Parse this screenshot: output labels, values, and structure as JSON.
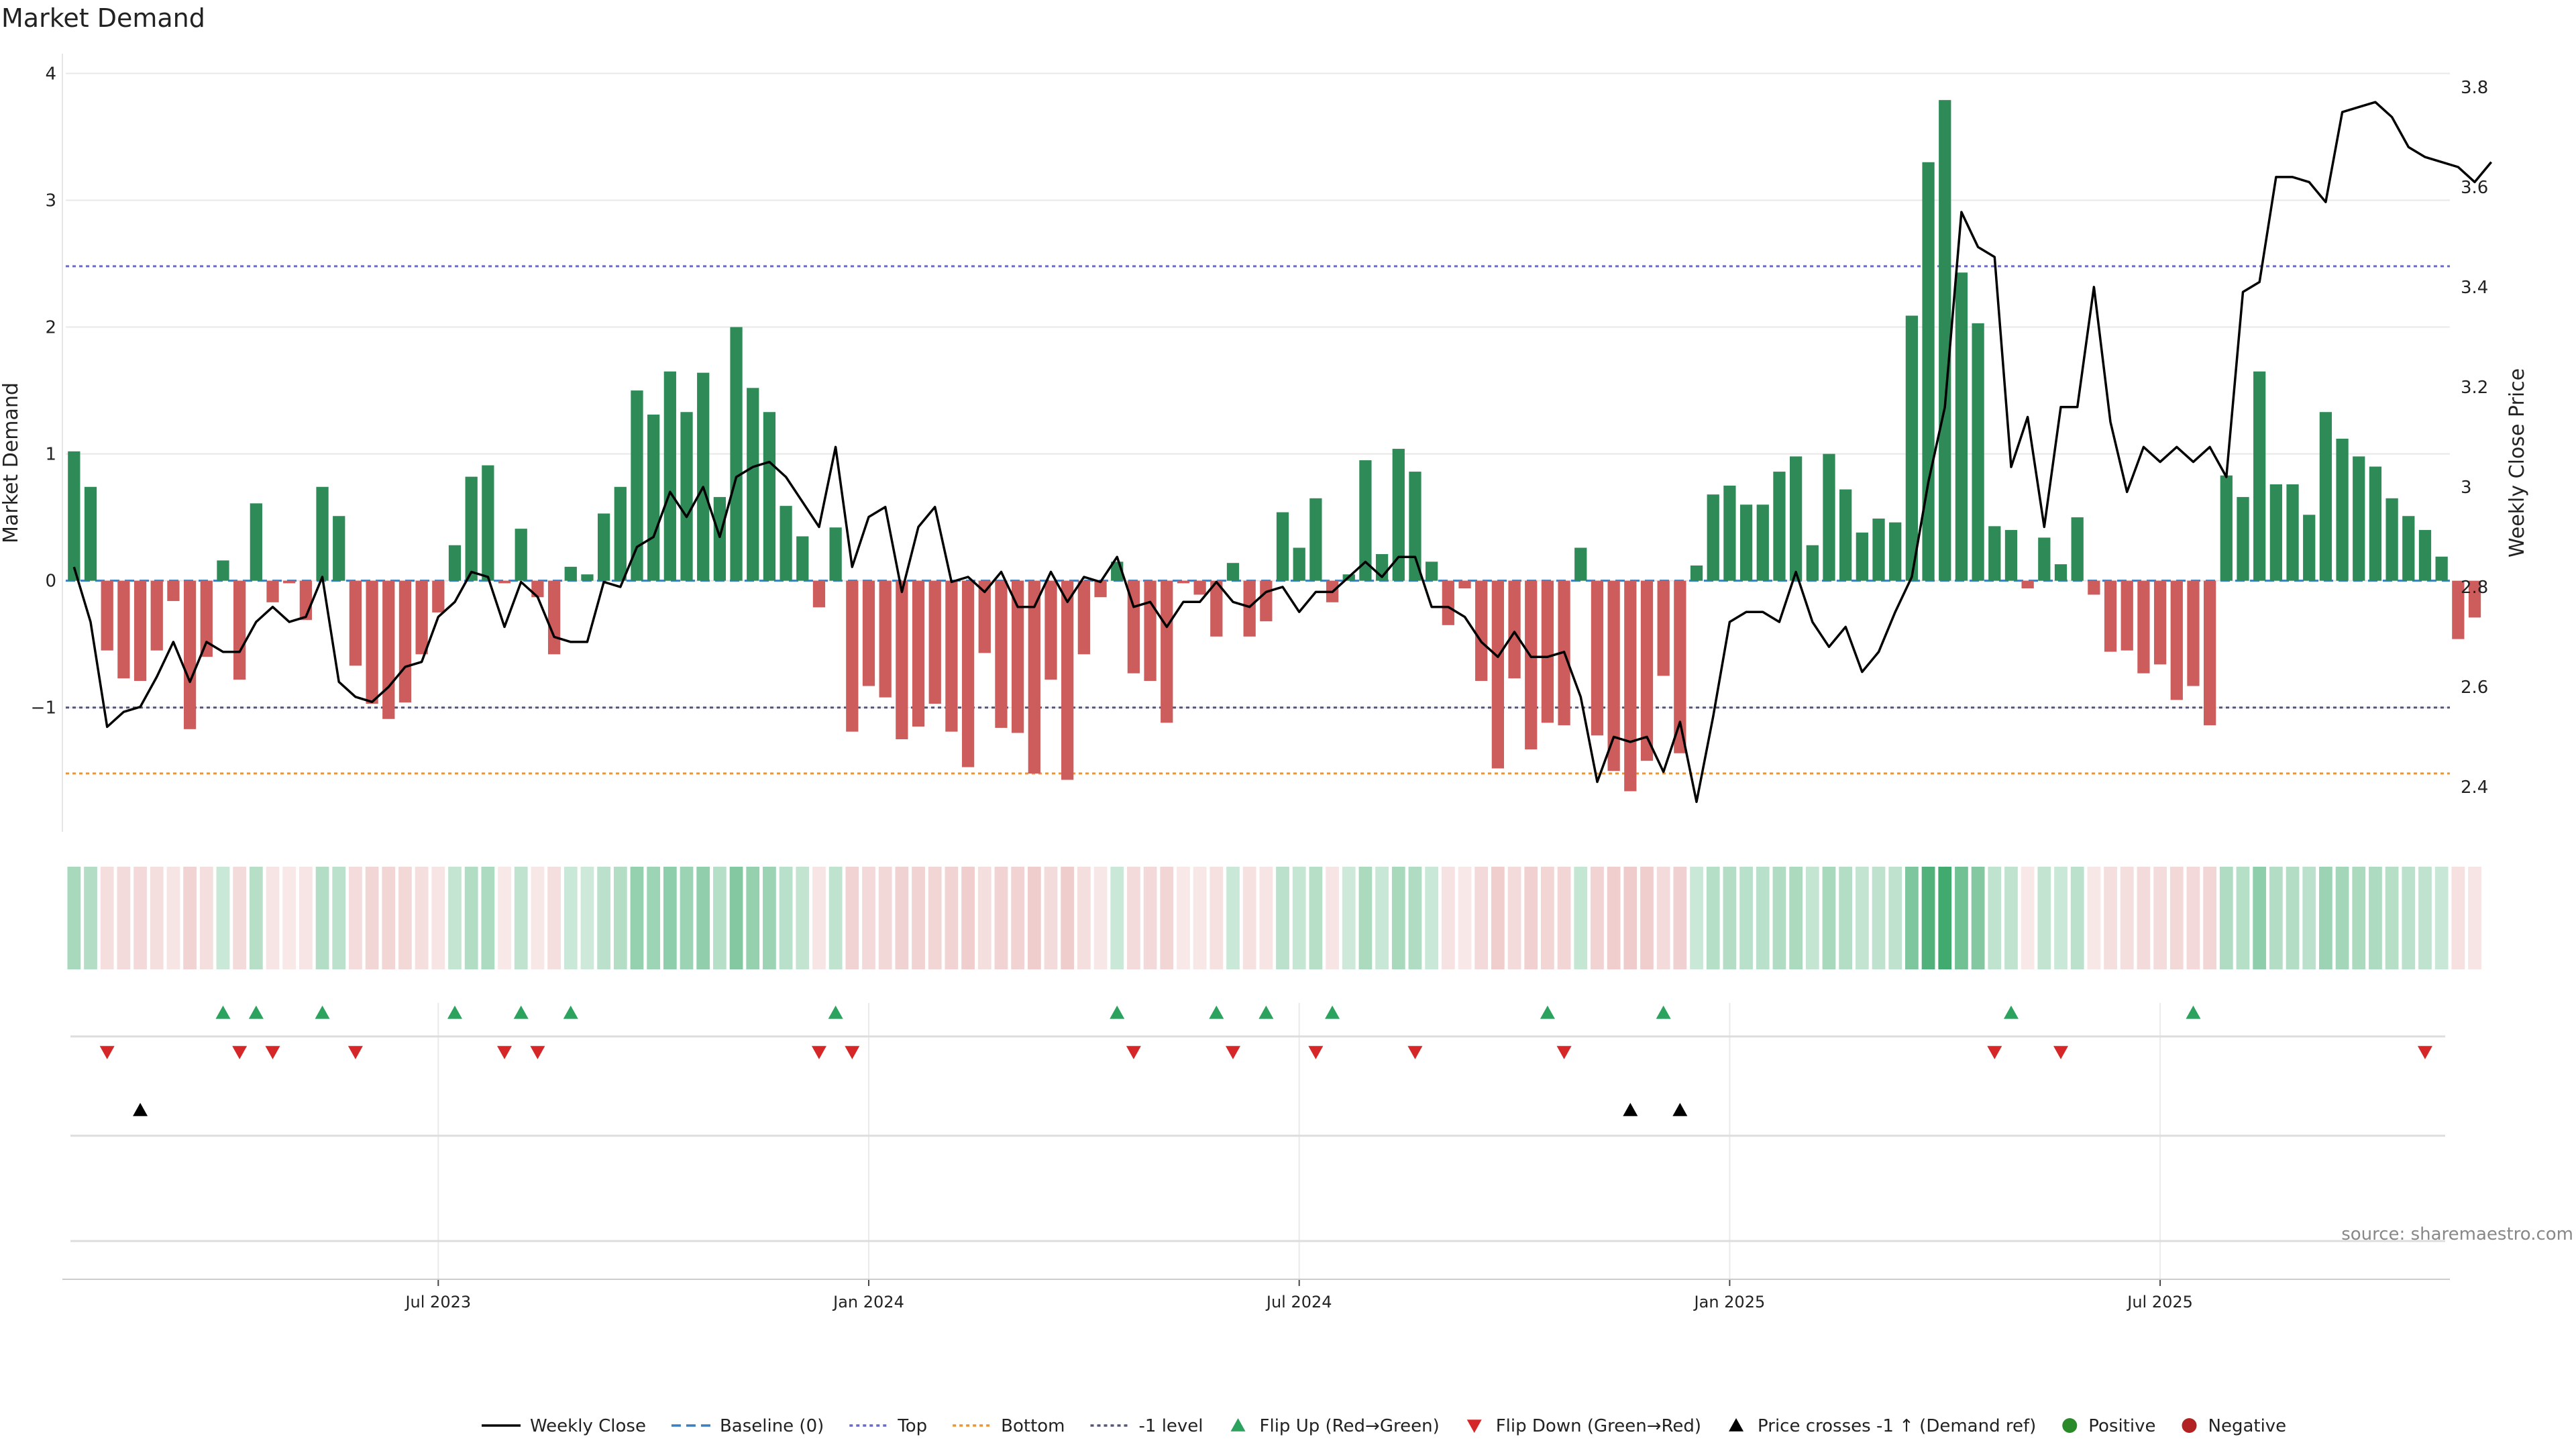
{
  "title": "Market Demand",
  "source": "source: sharemaestro.com",
  "colors": {
    "positive": "#2e8b57",
    "negative": "#cd5c5c",
    "price": "#000000",
    "top": "#6a6ac8",
    "bottom": "#e8963a",
    "minus1": "#555577",
    "flip_up": "#2ca25f",
    "flip_down": "#d62728",
    "cross": "#000000",
    "grid": "#e8e8e8"
  },
  "chart_data": {
    "type": "bar",
    "title": "Market Demand",
    "ylabel_left": "Market Demand",
    "ylabel_right": "Weekly Close Price",
    "ylim_left": [
      -1.98,
      4.05
    ],
    "ylim_right": [
      2.31,
      3.84
    ],
    "yticks_left": [
      4,
      3,
      2,
      1,
      0,
      -1
    ],
    "yticks_left_labels": [
      "4",
      "3",
      "2",
      "1",
      "0",
      "−1"
    ],
    "yticks_right": [
      3.8,
      3.6,
      3.4,
      3.2,
      3.0,
      2.8,
      2.6,
      2.4
    ],
    "yticks_right_labels": [
      "3.8",
      "3.6",
      "3.4",
      "3.2",
      "3",
      "2.8",
      "2.6",
      "2.4"
    ],
    "x_ticks": [
      {
        "week": 22,
        "label": "Jul 2023"
      },
      {
        "week": 48,
        "label": "Jan 2024"
      },
      {
        "week": 74,
        "label": "Jul 2024"
      },
      {
        "week": 100,
        "label": "Jan 2025"
      },
      {
        "week": 126,
        "label": "Jul 2025"
      }
    ],
    "reference_lines": {
      "baseline": 0,
      "top": 2.48,
      "bottom": -1.52,
      "minus1_level": -1
    },
    "weeks": 144,
    "demand": [
      1.02,
      0.74,
      -0.55,
      -0.77,
      -0.79,
      -0.55,
      -0.16,
      -1.17,
      -0.6,
      0.16,
      -0.78,
      0.61,
      -0.17,
      -0.02,
      -0.31,
      0.74,
      0.51,
      -0.67,
      -0.97,
      -1.09,
      -0.96,
      -0.58,
      -0.25,
      0.28,
      0.82,
      0.91,
      -0.02,
      0.41,
      -0.13,
      -0.58,
      0.11,
      0.05,
      0.53,
      0.74,
      1.5,
      1.31,
      1.65,
      1.33,
      1.64,
      0.66,
      2.0,
      1.52,
      1.33,
      0.59,
      0.35,
      -0.21,
      0.42,
      -1.19,
      -0.83,
      -0.92,
      -1.25,
      -1.15,
      -0.97,
      -1.19,
      -1.47,
      -0.57,
      -1.16,
      -1.2,
      -1.52,
      -0.78,
      -1.57,
      -0.58,
      -0.13,
      0.15,
      -0.73,
      -0.79,
      -1.12,
      -0.02,
      -0.11,
      -0.44,
      0.14,
      -0.44,
      -0.32,
      0.54,
      0.26,
      0.65,
      -0.17,
      0.05,
      0.95,
      0.21,
      1.04,
      0.86,
      0.15,
      -0.35,
      -0.06,
      -0.79,
      -1.48,
      -0.77,
      -1.33,
      -1.12,
      -1.14,
      0.26,
      -1.22,
      -1.5,
      -1.66,
      -1.42,
      -0.75,
      -1.36,
      0.12,
      0.68,
      0.75,
      0.6,
      0.6,
      0.86,
      0.98,
      0.28,
      1.0,
      0.72,
      0.38,
      0.49,
      0.46,
      2.09,
      3.3,
      3.79,
      2.43,
      2.03,
      0.43,
      0.4,
      -0.06,
      0.34,
      0.13,
      0.5,
      -0.11,
      -0.56,
      -0.55,
      -0.73,
      -0.66,
      -0.94,
      -0.83,
      -1.14,
      0.83,
      0.66,
      1.65,
      0.76,
      0.76,
      0.52,
      1.33,
      1.12,
      0.98,
      0.9,
      0.65,
      0.51,
      0.4,
      0.19,
      -0.46,
      -0.29
    ],
    "weekly_close": [
      2.84,
      2.73,
      2.52,
      2.55,
      2.56,
      2.62,
      2.69,
      2.61,
      2.69,
      2.67,
      2.67,
      2.73,
      2.76,
      2.73,
      2.74,
      2.82,
      2.61,
      2.58,
      2.57,
      2.6,
      2.64,
      2.65,
      2.74,
      2.77,
      2.83,
      2.82,
      2.72,
      2.81,
      2.78,
      2.7,
      2.69,
      2.69,
      2.81,
      2.8,
      2.88,
      2.9,
      2.99,
      2.94,
      3.0,
      2.9,
      3.02,
      3.04,
      3.05,
      3.02,
      2.97,
      2.92,
      3.08,
      2.84,
      2.94,
      2.96,
      2.79,
      2.92,
      2.96,
      2.81,
      2.82,
      2.79,
      2.83,
      2.76,
      2.76,
      2.83,
      2.77,
      2.82,
      2.81,
      2.86,
      2.76,
      2.77,
      2.72,
      2.77,
      2.77,
      2.81,
      2.77,
      2.76,
      2.79,
      2.8,
      2.75,
      2.79,
      2.79,
      2.82,
      2.85,
      2.82,
      2.86,
      2.86,
      2.76,
      2.76,
      2.74,
      2.69,
      2.66,
      2.71,
      2.66,
      2.66,
      2.67,
      2.58,
      2.41,
      2.5,
      2.49,
      2.5,
      2.43,
      2.53,
      2.37,
      2.54,
      2.73,
      2.75,
      2.75,
      2.73,
      2.83,
      2.73,
      2.68,
      2.72,
      2.63,
      2.67,
      2.75,
      2.82,
      3.01,
      3.16,
      3.55,
      3.48,
      3.46,
      3.04,
      3.14,
      2.92,
      3.16,
      3.16,
      3.4,
      3.13,
      2.99,
      3.08,
      3.05,
      3.08,
      3.05,
      3.08,
      3.02,
      3.39,
      3.41,
      3.62,
      3.62,
      3.61,
      3.57,
      3.75,
      3.76,
      3.77,
      3.74,
      3.68,
      3.66,
      3.65,
      3.64,
      3.61,
      3.65
    ],
    "heat_strip": {
      "label": "Demand heat strip",
      "note": "one cell per week, colour intensity follows demand"
    },
    "flip_up_weeks": [
      9,
      11,
      15,
      23,
      27,
      30,
      46,
      63,
      69,
      72,
      76,
      89,
      96,
      117,
      128
    ],
    "flip_down_weeks": [
      2,
      10,
      12,
      17,
      26,
      28,
      45,
      47,
      64,
      70,
      75,
      81,
      90,
      116,
      120,
      142
    ],
    "price_cross_weeks": [
      4,
      94,
      97
    ]
  },
  "legend": [
    {
      "name": "Weekly Close",
      "kind": "line-solid-black"
    },
    {
      "name": "Baseline (0)",
      "kind": "line-dashed-blue"
    },
    {
      "name": "Top",
      "kind": "line-dotted-purple"
    },
    {
      "name": "Bottom",
      "kind": "line-dotted-orange"
    },
    {
      "name": "-1 level",
      "kind": "line-dotted-gray"
    },
    {
      "name": "Flip Up (Red→Green)",
      "kind": "triangle-up-green"
    },
    {
      "name": "Flip Down (Green→Red)",
      "kind": "triangle-down-red"
    },
    {
      "name": "Price crosses -1 ↑ (Demand ref)",
      "kind": "triangle-up-black"
    },
    {
      "name": "Positive",
      "kind": "dot-green"
    },
    {
      "name": "Negative",
      "kind": "dot-red"
    }
  ]
}
